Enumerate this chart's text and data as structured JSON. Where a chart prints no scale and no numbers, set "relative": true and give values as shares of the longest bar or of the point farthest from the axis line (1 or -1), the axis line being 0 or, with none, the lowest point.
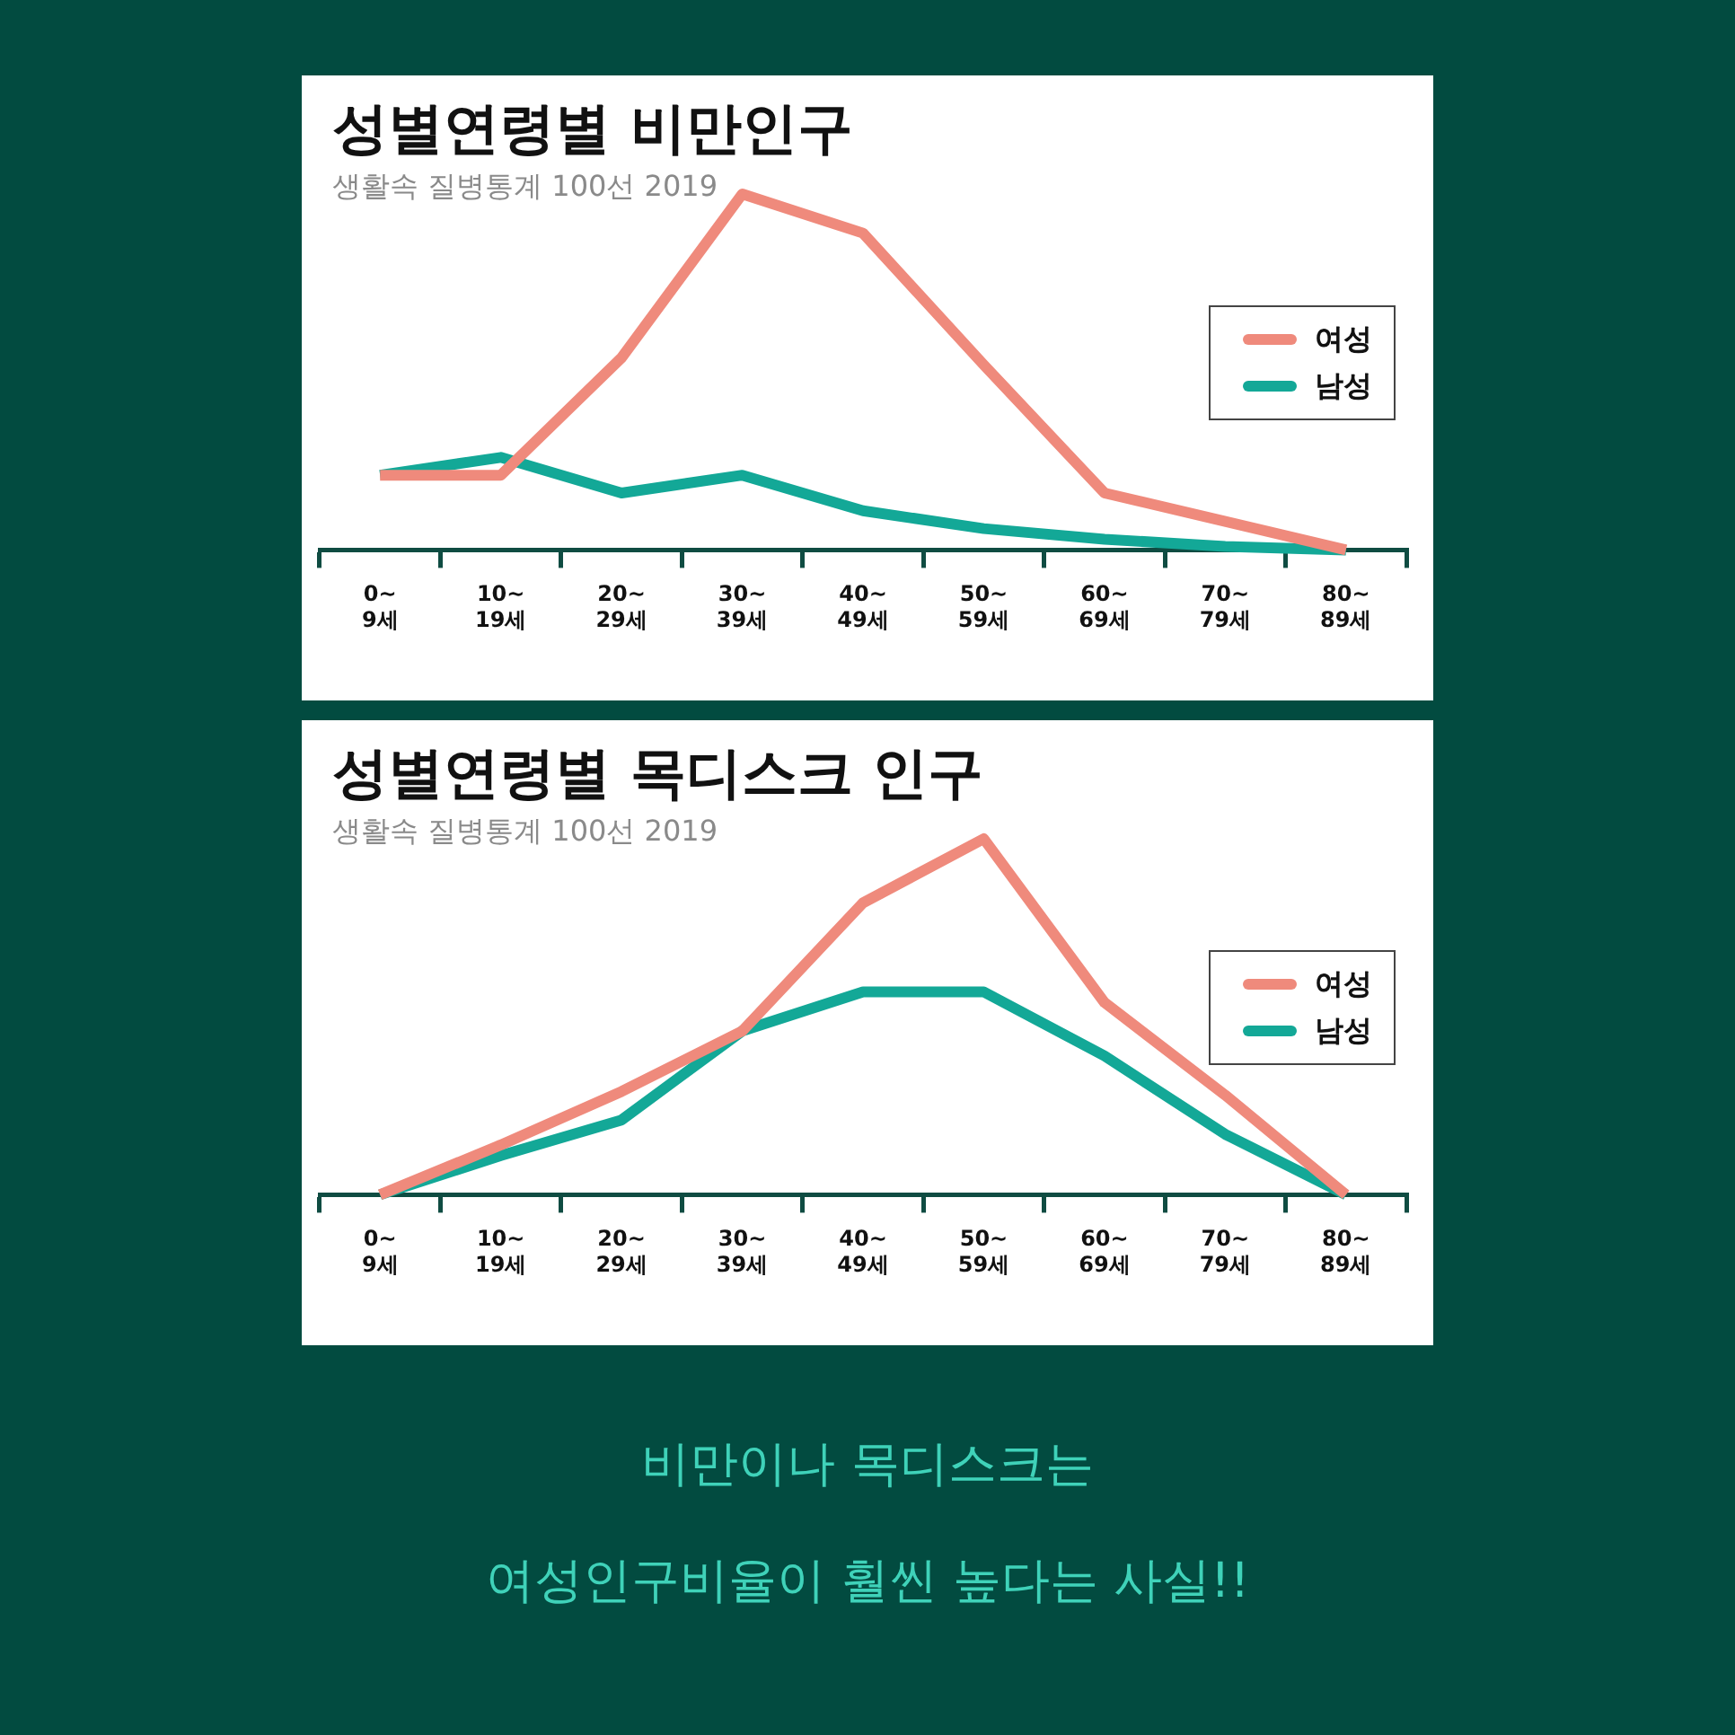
{
  "chart_data": [
    {
      "type": "line",
      "title": "성별연령별 비만인구",
      "subtitle": "생활속 질병통계 100선 2019",
      "relative": true,
      "legend": "right",
      "marker": "none",
      "categories": [
        "0~\n9세",
        "10~\n19세",
        "20~\n29세",
        "30~\n39세",
        "40~\n49세",
        "50~\n59세",
        "60~\n69세",
        "70~\n79세",
        "80~\n89세"
      ],
      "series": [
        {
          "name": "여성",
          "color": "#ef8a7c",
          "values": [
            0.21,
            0.21,
            0.54,
            1,
            0.89,
            0.52,
            0.16,
            0.08,
            0
          ]
        },
        {
          "name": "남성",
          "color": "#13a897",
          "values": [
            0.21,
            0.26,
            0.16,
            0.21,
            0.11,
            0.06,
            0.03,
            0.01,
            0
          ]
        }
      ]
    },
    {
      "type": "line",
      "title": "성별연령별 목디스크 인구",
      "subtitle": "생활속 질병통계 100선 2019",
      "relative": true,
      "legend": "right",
      "marker": "none",
      "categories": [
        "0~\n9세",
        "10~\n19세",
        "20~\n29세",
        "30~\n39세",
        "40~\n49세",
        "50~\n59세",
        "60~\n69세",
        "70~\n79세",
        "80~\n89세"
      ],
      "series": [
        {
          "name": "여성",
          "color": "#ef8a7c",
          "values": [
            0,
            0.14,
            0.29,
            0.46,
            0.82,
            1,
            0.54,
            0.28,
            0
          ]
        },
        {
          "name": "남성",
          "color": "#13a897",
          "values": [
            0,
            0.11,
            0.21,
            0.46,
            0.57,
            0.57,
            0.39,
            0.17,
            0
          ]
        }
      ]
    },
    {
      "type": "other",
      "annotations": [
        "비만이나 목디스크는",
        "여성인구비율이 훨씬 높다는 사실!!"
      ]
    }
  ]
}
